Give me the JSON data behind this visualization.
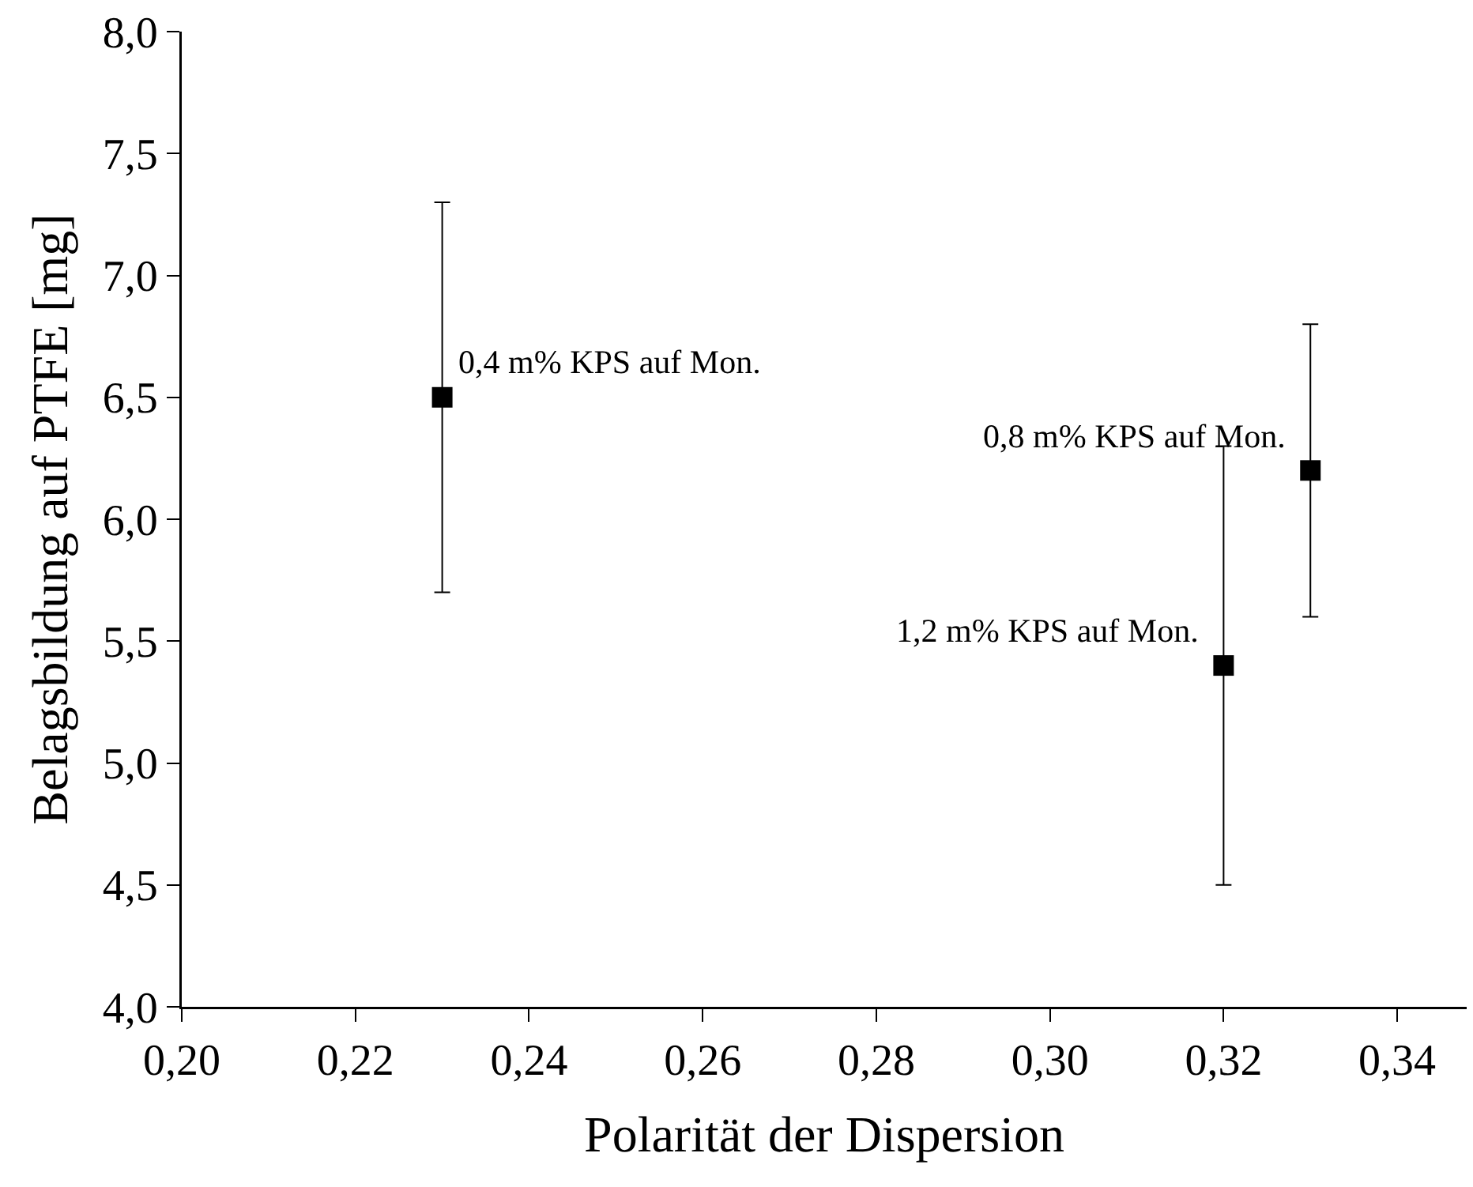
{
  "chart_data": {
    "type": "scatter",
    "xlabel": "Polarität der Dispersion",
    "ylabel": "Belagsbildung auf PTFE [mg]",
    "x": [
      0.23,
      0.32,
      0.33
    ],
    "values": [
      6.5,
      5.4,
      6.2
    ],
    "errors": [
      0.8,
      0.9,
      0.6
    ],
    "color": "#000000",
    "marker": "square",
    "grid": false,
    "legend": false,
    "xlim": [
      0.2,
      0.348
    ],
    "xticks": [
      {
        "value": 0.2,
        "label": "0,20"
      },
      {
        "value": 0.22,
        "label": "0,22"
      },
      {
        "value": 0.24,
        "label": "0,24"
      },
      {
        "value": 0.26,
        "label": "0,26"
      },
      {
        "value": 0.28,
        "label": "0,28"
      },
      {
        "value": 0.3,
        "label": "0,30"
      },
      {
        "value": 0.32,
        "label": "0,32"
      },
      {
        "value": 0.34,
        "label": "0,34"
      }
    ],
    "ylim": [
      4,
      8
    ],
    "yticks": [
      {
        "value": 4,
        "label": "4,0"
      },
      {
        "value": 4.5,
        "label": "4,5"
      },
      {
        "value": 5,
        "label": "5,0"
      },
      {
        "value": 5.5,
        "label": "5,5"
      },
      {
        "value": 6,
        "label": "6,0"
      },
      {
        "value": 6.5,
        "label": "6,5"
      },
      {
        "value": 7,
        "label": "7,0"
      },
      {
        "value": 7.5,
        "label": "7,5"
      },
      {
        "value": 8,
        "label": "8,0"
      }
    ],
    "annotations": [
      {
        "text": "0,4 m% KPS auf Mon.",
        "x": 0.23,
        "y": 6.5
      },
      {
        "text": "0,8 m% KPS auf Mon.",
        "x": 0.33,
        "y": 6.2
      },
      {
        "text": "1,2 m% KPS auf Mon.",
        "x": 0.32,
        "y": 5.4
      }
    ]
  }
}
